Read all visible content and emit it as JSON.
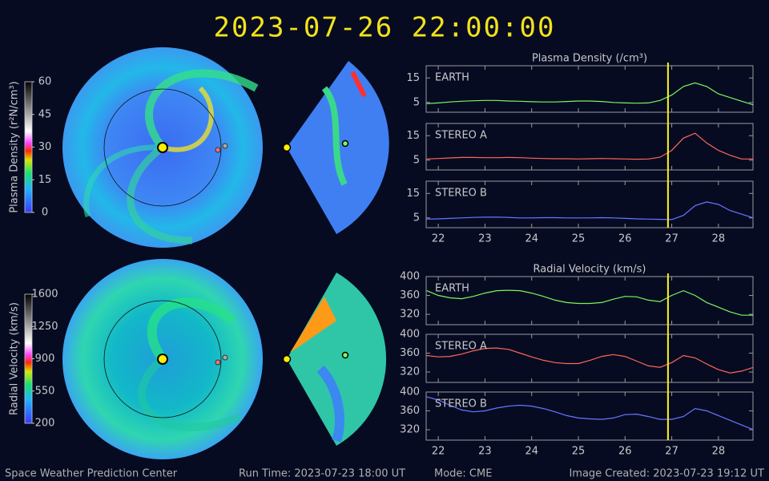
{
  "header": {
    "title": "2023-07-26  22:00:00"
  },
  "footer": {
    "left": "Space Weather Prediction Center",
    "run_time": "Run Time: 2023-07-23 18:00 UT",
    "mode": "Mode: CME",
    "created": "Image Created: 2023-07-23 19:12 UT"
  },
  "colorbars": [
    {
      "label": "Plasma Density (r²N/cm³)",
      "lim": [
        0,
        60
      ],
      "ticks": [
        0,
        15,
        30,
        45,
        60
      ]
    },
    {
      "label": "Radial Velocity (km/s)",
      "lim": [
        200,
        1600
      ],
      "ticks": [
        200,
        550,
        900,
        1250,
        1600
      ]
    }
  ],
  "chart_data": [
    {
      "type": "line",
      "title": "Plasma Density (/cm³)",
      "xlim": [
        21.74,
        28.74
      ],
      "xticks": [
        22,
        23,
        24,
        25,
        26,
        27,
        28
      ],
      "ylim": [
        1,
        20
      ],
      "yticks": [
        5,
        15
      ],
      "current_time": 26.92,
      "x": [
        21.75,
        22,
        22.25,
        22.5,
        22.75,
        23,
        23.25,
        23.5,
        23.75,
        24,
        24.25,
        24.5,
        24.75,
        25,
        25.25,
        25.5,
        25.75,
        26,
        26.25,
        26.5,
        26.75,
        27,
        27.25,
        27.5,
        27.75,
        28,
        28.25,
        28.5,
        28.75
      ],
      "series": [
        {
          "name": "EARTH",
          "color": "#7cf55c",
          "values": [
            4.5,
            4.8,
            5.2,
            5.5,
            5.7,
            5.8,
            5.8,
            5.6,
            5.5,
            5.3,
            5.2,
            5.2,
            5.4,
            5.6,
            5.6,
            5.4,
            5.0,
            4.8,
            4.7,
            4.8,
            5.8,
            8.0,
            11.5,
            13,
            11.5,
            8.5,
            7,
            5.5,
            4
          ]
        }
      ]
    },
    {
      "type": "line",
      "xlim": [
        21.74,
        28.74
      ],
      "xticks": [
        22,
        23,
        24,
        25,
        26,
        27,
        28
      ],
      "ylim": [
        1,
        20
      ],
      "yticks": [
        5,
        15
      ],
      "current_time": 26.92,
      "x": [
        21.75,
        22,
        22.25,
        22.5,
        22.75,
        23,
        23.25,
        23.5,
        23.75,
        24,
        24.25,
        24.5,
        24.75,
        25,
        25.25,
        25.5,
        25.75,
        26,
        26.25,
        26.5,
        26.75,
        27,
        27.25,
        27.5,
        27.75,
        28,
        28.25,
        28.5,
        28.75
      ],
      "series": [
        {
          "name": "STEREO A",
          "color": "#ff6655",
          "values": [
            5.5,
            5.7,
            5.9,
            6.1,
            6.1,
            6.0,
            6.0,
            6.1,
            6.0,
            5.8,
            5.7,
            5.6,
            5.6,
            5.5,
            5.6,
            5.7,
            5.6,
            5.5,
            5.4,
            5.5,
            6.2,
            9,
            14,
            16,
            12,
            9,
            7,
            5.5,
            5.5
          ]
        }
      ]
    },
    {
      "type": "line",
      "xlim": [
        21.74,
        28.74
      ],
      "xticks": [
        22,
        23,
        24,
        25,
        26,
        27,
        28
      ],
      "ylim": [
        1,
        20
      ],
      "yticks": [
        5,
        15
      ],
      "current_time": 26.92,
      "x": [
        21.75,
        22,
        22.25,
        22.5,
        22.75,
        23,
        23.25,
        23.5,
        23.75,
        24,
        24.25,
        24.5,
        24.75,
        25,
        25.25,
        25.5,
        25.75,
        26,
        26.25,
        26.5,
        26.75,
        27,
        27.25,
        27.5,
        27.75,
        28,
        28.25,
        28.5,
        28.75
      ],
      "series": [
        {
          "name": "STEREO B",
          "color": "#6677ff",
          "values": [
            4.5,
            4.6,
            4.8,
            5.0,
            5.2,
            5.3,
            5.3,
            5.2,
            5.0,
            5.0,
            5.1,
            5.1,
            5.0,
            5.0,
            5.0,
            5.1,
            5.0,
            4.8,
            4.6,
            4.5,
            4.4,
            4.3,
            6,
            10,
            11.5,
            10.5,
            8,
            6.5,
            5
          ]
        }
      ]
    },
    {
      "type": "line",
      "title": "Radial Velocity (km/s)",
      "xlim": [
        21.74,
        28.74
      ],
      "xticks": [
        22,
        23,
        24,
        25,
        26,
        27,
        28
      ],
      "ylim": [
        298,
        400
      ],
      "yticks": [
        320,
        360,
        400
      ],
      "current_time": 26.92,
      "x": [
        21.75,
        22,
        22.25,
        22.5,
        22.75,
        23,
        23.25,
        23.5,
        23.75,
        24,
        24.25,
        24.5,
        24.75,
        25,
        25.25,
        25.5,
        25.75,
        26,
        26.25,
        26.5,
        26.75,
        27,
        27.25,
        27.5,
        27.75,
        28,
        28.25,
        28.5,
        28.75
      ],
      "series": [
        {
          "name": "EARTH",
          "color": "#7cf55c",
          "values": [
            370,
            360,
            355,
            353,
            358,
            365,
            370,
            371,
            370,
            365,
            358,
            350,
            345,
            343,
            343,
            345,
            352,
            358,
            357,
            350,
            347,
            360,
            370,
            360,
            345,
            335,
            325,
            318,
            318
          ]
        }
      ]
    },
    {
      "type": "line",
      "xlim": [
        21.74,
        28.74
      ],
      "xticks": [
        22,
        23,
        24,
        25,
        26,
        27,
        28
      ],
      "ylim": [
        298,
        400
      ],
      "yticks": [
        320,
        360,
        400
      ],
      "current_time": 26.92,
      "x": [
        21.75,
        22,
        22.25,
        22.5,
        22.75,
        23,
        23.25,
        23.5,
        23.75,
        24,
        24.25,
        24.5,
        24.75,
        25,
        25.25,
        25.5,
        25.75,
        26,
        26.25,
        26.5,
        26.75,
        27,
        27.25,
        27.5,
        27.75,
        28,
        28.25,
        28.5,
        28.75
      ],
      "series": [
        {
          "name": "STEREO A",
          "color": "#ff6655",
          "values": [
            355,
            352,
            353,
            358,
            365,
            370,
            371,
            368,
            360,
            352,
            345,
            340,
            338,
            338,
            345,
            353,
            357,
            353,
            343,
            333,
            330,
            340,
            355,
            350,
            337,
            325,
            318,
            322,
            330
          ]
        }
      ]
    },
    {
      "type": "line",
      "xlim": [
        21.74,
        28.74
      ],
      "xticks": [
        22,
        23,
        24,
        25,
        26,
        27,
        28
      ],
      "ylim": [
        298,
        400
      ],
      "yticks": [
        320,
        360,
        400
      ],
      "current_time": 26.92,
      "x": [
        21.75,
        22,
        22.25,
        22.5,
        22.75,
        23,
        23.25,
        23.5,
        23.75,
        24,
        24.25,
        24.5,
        24.75,
        25,
        25.25,
        25.5,
        25.75,
        26,
        26.25,
        26.5,
        26.75,
        27,
        27.25,
        27.5,
        27.75,
        28,
        28.25,
        28.5,
        28.75
      ],
      "series": [
        {
          "name": "STEREO B",
          "color": "#6677ff",
          "values": [
            390,
            383,
            372,
            362,
            358,
            360,
            366,
            370,
            372,
            370,
            365,
            358,
            350,
            345,
            343,
            342,
            345,
            352,
            353,
            348,
            342,
            342,
            348,
            365,
            360,
            350,
            340,
            330,
            320
          ]
        }
      ]
    }
  ]
}
